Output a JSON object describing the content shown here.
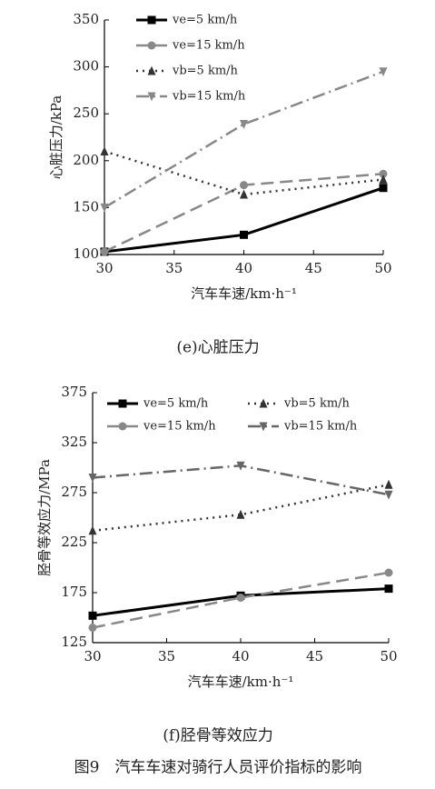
{
  "chart_data": [
    {
      "type": "line",
      "y_label": "心脏压力/kPa",
      "x_label": "汽车车速/km·h⁻¹",
      "caption": "(e)心脏压力",
      "x": [
        30,
        40,
        50
      ],
      "xlim": [
        30,
        50
      ],
      "xticks": [
        30,
        35,
        40,
        45,
        50
      ],
      "ylim": [
        100,
        350
      ],
      "yticks": [
        100,
        150,
        200,
        250,
        300,
        350
      ],
      "series": [
        {
          "name": "ve=5 km/h",
          "color": "#000000",
          "line_style": "solid",
          "marker": "square",
          "values": [
            103,
            121,
            171
          ]
        },
        {
          "name": "ve=15 km/h",
          "color": "#888888",
          "line_style": "dashed",
          "marker": "circle",
          "values": [
            103,
            174,
            186
          ]
        },
        {
          "name": "vb=5 km/h",
          "color": "#333333",
          "line_style": "dotted",
          "marker": "triangle-up",
          "values": [
            210,
            164,
            180
          ]
        },
        {
          "name": "vb=15 km/h",
          "color": "#888888",
          "line_style": "dashdot",
          "marker": "triangle-down",
          "values": [
            150,
            239,
            295
          ]
        }
      ]
    },
    {
      "type": "line",
      "y_label": "胫骨等效应力/MPa",
      "x_label": "汽车车速/km·h⁻¹",
      "caption": "(f)胫骨等效应力",
      "x": [
        30,
        40,
        50
      ],
      "xlim": [
        30,
        50
      ],
      "xticks": [
        30,
        35,
        40,
        45,
        50
      ],
      "ylim": [
        125,
        375
      ],
      "yticks": [
        125,
        175,
        225,
        275,
        325,
        375
      ],
      "series": [
        {
          "name": "ve=5 km/h",
          "color": "#000000",
          "line_style": "solid",
          "marker": "square",
          "values": [
            152,
            172,
            179
          ]
        },
        {
          "name": "vb=5 km/h",
          "color": "#333333",
          "line_style": "dotted",
          "marker": "triangle-up",
          "values": [
            237,
            253,
            283
          ]
        },
        {
          "name": "ve=15 km/h",
          "color": "#888888",
          "line_style": "dashed",
          "marker": "circle",
          "values": [
            140,
            170,
            195
          ]
        },
        {
          "name": "vb=15 km/h",
          "color": "#666666",
          "line_style": "dashdot",
          "marker": "triangle-down",
          "values": [
            290,
            302,
            273
          ]
        }
      ]
    }
  ],
  "figure_caption": "图9　汽车车速对骑行人员评价指标的影响"
}
